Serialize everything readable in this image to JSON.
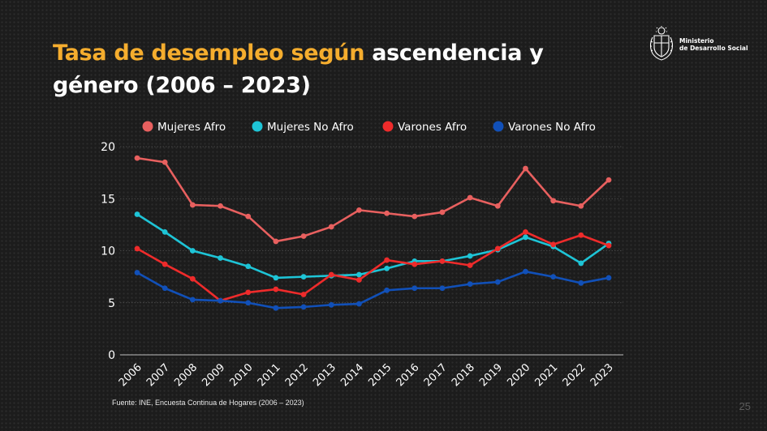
{
  "title": {
    "highlight": "Tasa de desempleo según",
    "rest_line1": " ascendencia y",
    "line2": "género (2006 – 2023)"
  },
  "logo": {
    "line1": "Ministerio",
    "line2": "de Desarrollo Social",
    "icon": "coat-of-arms-icon"
  },
  "source": "Fuente: INE, Encuesta Continua de Hogares (2006 – 2023)",
  "page_number": "25",
  "chart_data": {
    "type": "line",
    "title": "Tasa de desempleo según ascendencia y género (2006 – 2023)",
    "xlabel": "",
    "ylabel": "",
    "ylim": [
      0,
      20
    ],
    "yticks": [
      "0",
      "5",
      "10",
      "15",
      "20"
    ],
    "grid": true,
    "legend_position": "top",
    "x": [
      "2006",
      "2007",
      "2008",
      "2009",
      "2010",
      "2011",
      "2012",
      "2013",
      "2014",
      "2015",
      "2016",
      "2017",
      "2018",
      "2019",
      "2020",
      "2021",
      "2022",
      "2023"
    ],
    "series": [
      {
        "name": "Mujeres Afro",
        "color": "#e8605f",
        "values": [
          18.9,
          18.5,
          14.4,
          14.3,
          13.3,
          10.9,
          11.4,
          12.3,
          13.9,
          13.6,
          13.3,
          13.7,
          15.1,
          14.3,
          17.9,
          14.8,
          14.3,
          16.8
        ]
      },
      {
        "name": "Mujeres No Afro",
        "color": "#1ec4d6",
        "values": [
          13.5,
          11.8,
          10.0,
          9.3,
          8.5,
          7.4,
          7.5,
          7.6,
          7.7,
          8.3,
          9.0,
          9.0,
          9.5,
          10.1,
          11.3,
          10.4,
          8.8,
          10.7
        ]
      },
      {
        "name": "Varones Afro",
        "color": "#ee2b2b",
        "values": [
          10.2,
          8.7,
          7.3,
          5.2,
          6.0,
          6.3,
          5.8,
          7.7,
          7.2,
          9.1,
          8.7,
          9.0,
          8.6,
          10.2,
          11.8,
          10.6,
          11.5,
          10.5
        ]
      },
      {
        "name": "Varones No Afro",
        "color": "#1150b8",
        "values": [
          7.9,
          6.4,
          5.3,
          5.2,
          5.0,
          4.5,
          4.6,
          4.8,
          4.9,
          6.2,
          6.4,
          6.4,
          6.8,
          7.0,
          8.0,
          7.5,
          6.9,
          7.4
        ]
      }
    ]
  }
}
